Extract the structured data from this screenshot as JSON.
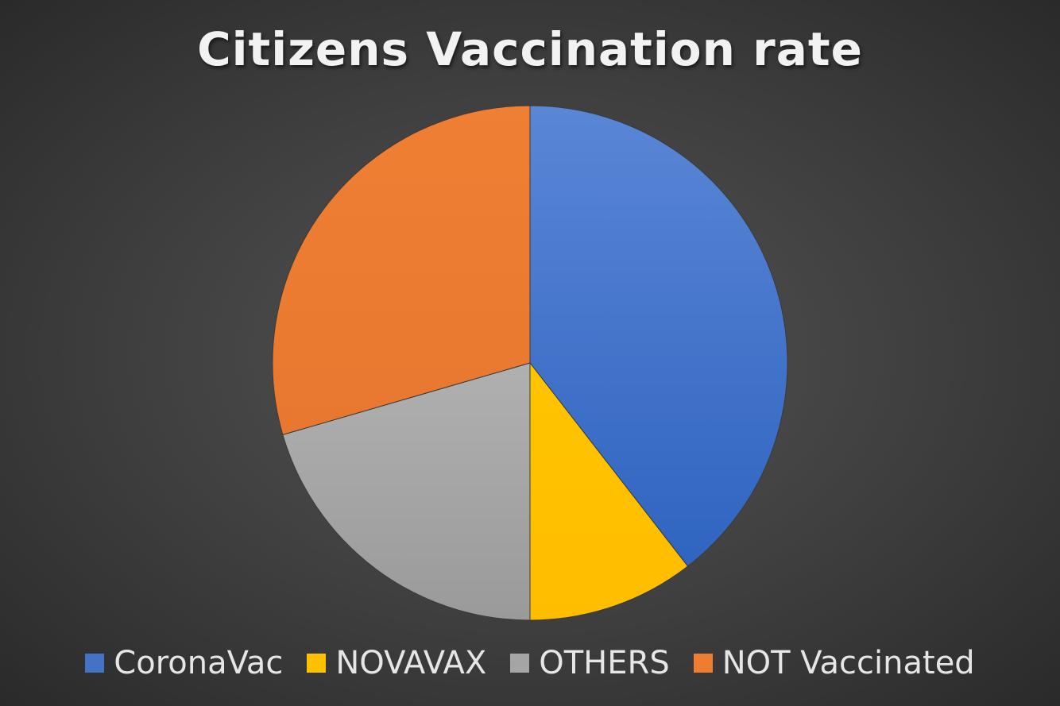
{
  "chart_data": {
    "type": "pie",
    "title": "Citizens Vaccination rate",
    "categories": [
      "CoronaVac",
      "NOVAVAX",
      "OTHERS",
      "NOT Vaccinated"
    ],
    "values": [
      39.5,
      10.5,
      20.5,
      29.5
    ],
    "colors": [
      "#4472C4",
      "#FFC000",
      "#A5A5A5",
      "#ED7D31"
    ],
    "start_angle_deg": 0,
    "direction": "clockwise",
    "legend_position": "bottom"
  }
}
